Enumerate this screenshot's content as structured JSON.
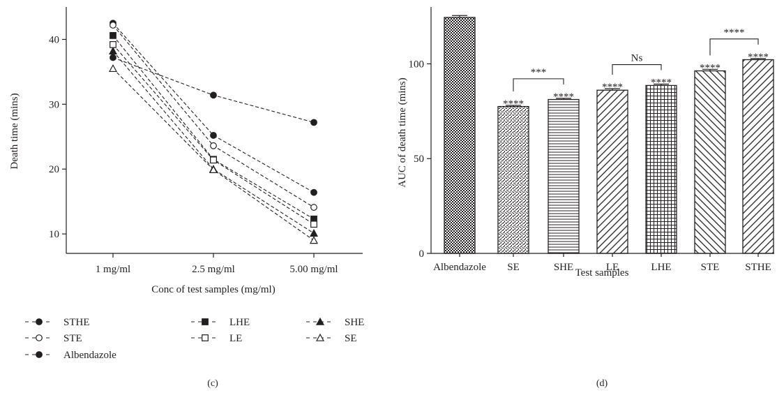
{
  "chart_data": [
    {
      "panel_label": "(c)",
      "type": "line",
      "xlabel": "Conc of test samples (mg/ml)",
      "ylabel": "Death time (mins)",
      "categories": [
        "1 mg/ml",
        "2.5 mg/ml",
        "5.00 mg/ml"
      ],
      "y_ticks": [
        10,
        20,
        30,
        40
      ],
      "ylim": [
        7,
        45
      ],
      "grid": false,
      "legend_position": "bottom",
      "line_style": "dashed",
      "series": [
        {
          "name": "STHE",
          "marker": "filled-circle",
          "values": [
            42.5,
            25.2,
            16.4
          ]
        },
        {
          "name": "LHE",
          "marker": "filled-square",
          "values": [
            40.6,
            21.5,
            12.3
          ]
        },
        {
          "name": "SHE",
          "marker": "filled-triangle",
          "values": [
            38.2,
            20.0,
            10.1
          ]
        },
        {
          "name": "STE",
          "marker": "open-circle",
          "values": [
            42.2,
            23.6,
            14.1
          ]
        },
        {
          "name": "LE",
          "marker": "open-square",
          "values": [
            39.2,
            21.4,
            11.5
          ]
        },
        {
          "name": "SE",
          "marker": "open-triangle",
          "values": [
            35.5,
            19.9,
            9.0
          ]
        },
        {
          "name": "Albendazole",
          "marker": "filled-circle",
          "values": [
            37.2,
            31.4,
            27.2
          ]
        }
      ]
    },
    {
      "panel_label": "(d)",
      "type": "bar",
      "xlabel": "Test samples",
      "ylabel": "AUC of death time (mins)",
      "categories": [
        "Albendazole",
        "SE",
        "SHE",
        "LE",
        "LHE",
        "STE",
        "STHE"
      ],
      "values": [
        124.5,
        77.5,
        81.2,
        86.1,
        88.6,
        96.3,
        102.2
      ],
      "errors": [
        1.0,
        0.6,
        0.6,
        0.8,
        0.7,
        0.8,
        0.6
      ],
      "fill_patterns": [
        "dense-check",
        "speckle",
        "horizontal-lines",
        "diagonal-lines",
        "grid",
        "reverse-diagonal",
        "diagonal-lines"
      ],
      "y_ticks": [
        0,
        50,
        100
      ],
      "ylim": [
        0,
        130
      ],
      "grid": false,
      "significance_labels": [
        {
          "category": "SE",
          "text": "****"
        },
        {
          "category": "SHE",
          "text": "****"
        },
        {
          "category": "LE",
          "text": "****"
        },
        {
          "category": "LHE",
          "text": "****"
        },
        {
          "category": "STE",
          "text": "****"
        },
        {
          "category": "STHE",
          "text": "****"
        }
      ],
      "comparison_brackets": [
        {
          "from": "SE",
          "to": "SHE",
          "text": "***"
        },
        {
          "from": "LE",
          "to": "LHE",
          "text": "Ns"
        },
        {
          "from": "STE",
          "to": "STHE",
          "text": "****"
        }
      ]
    }
  ]
}
